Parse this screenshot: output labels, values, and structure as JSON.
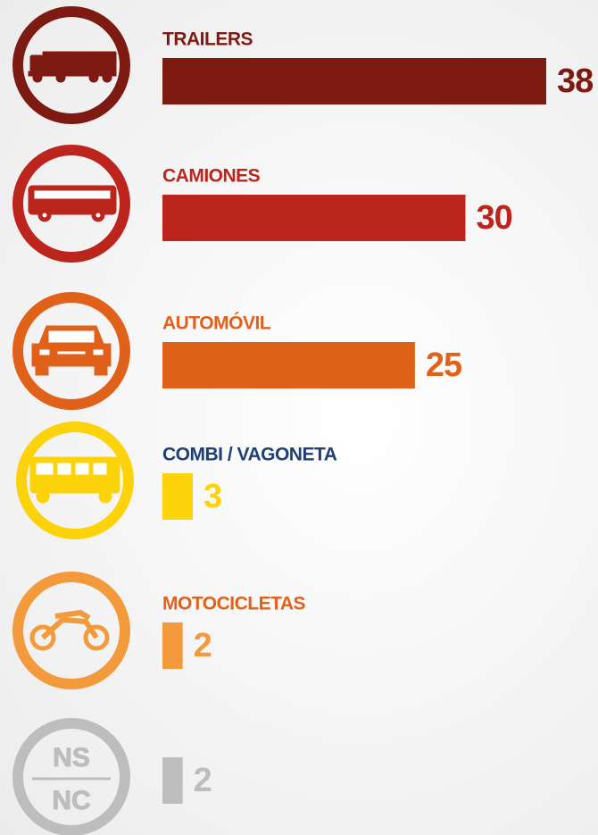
{
  "chart_data": {
    "type": "bar",
    "orientation": "horizontal",
    "categories": [
      "TRAILERS",
      "CAMIONES",
      "AUTOMÓVIL",
      "COMBI / VAGONETA",
      "MOTOCICLETAS",
      null
    ],
    "values": [
      38,
      30,
      25,
      3,
      2,
      2
    ],
    "colors": [
      "#7d1a12",
      "#bb251c",
      "#e0611a",
      "#fcd20a",
      "#f39a3c",
      "#bdbdbd"
    ],
    "label_colors": [
      "#7d1a12",
      "#bb251c",
      "#e0611a",
      "#1f3f78",
      "#e0611a",
      null
    ],
    "icon_labels": [
      "NS",
      "NC"
    ]
  }
}
